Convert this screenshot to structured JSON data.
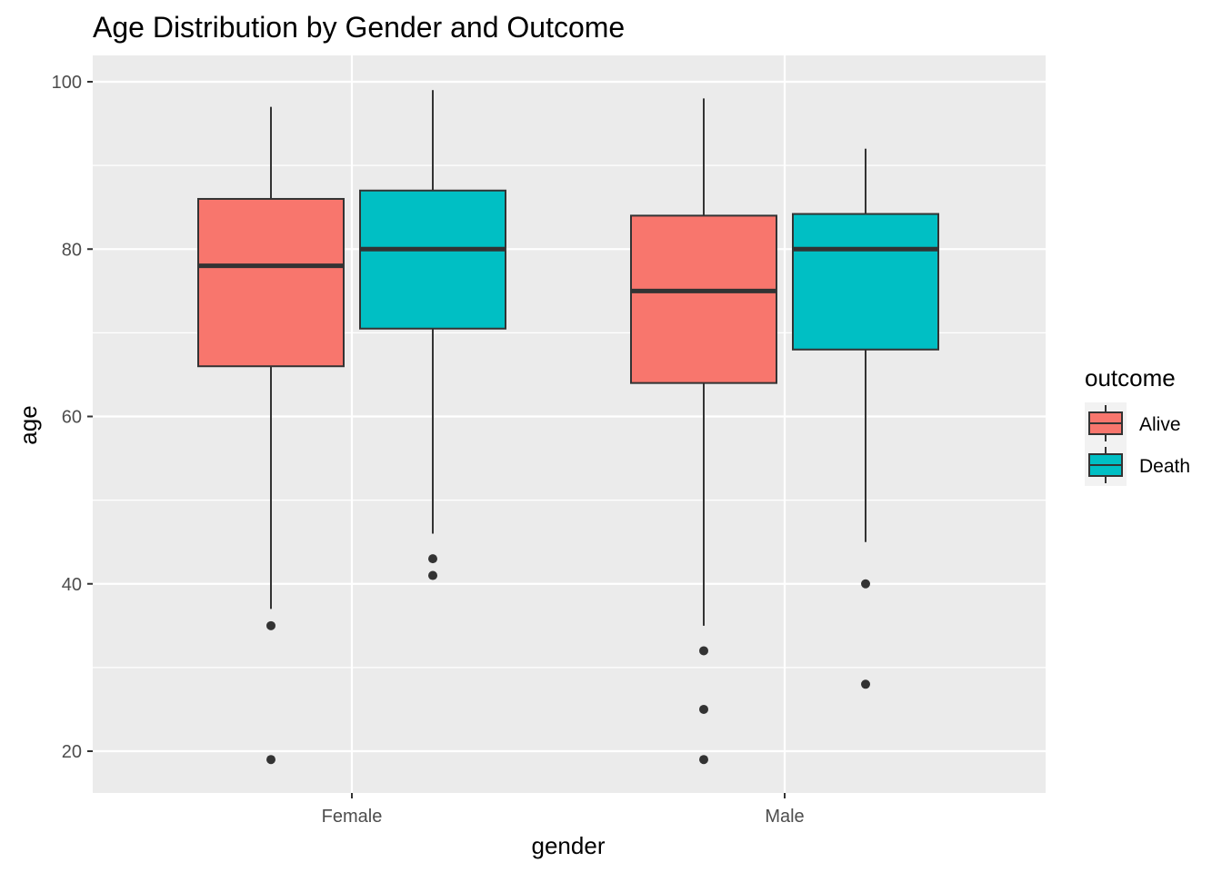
{
  "chart_data": {
    "type": "boxplot",
    "title": "Age Distribution by Gender and Outcome",
    "xlabel": "gender",
    "ylabel": "age",
    "categories": [
      "Female",
      "Male"
    ],
    "y_ticks": [
      "20",
      "40",
      "60",
      "80",
      "100"
    ],
    "y_tick_values": [
      20,
      40,
      60,
      80,
      100
    ],
    "ylim": [
      15,
      103
    ],
    "grid": true,
    "legend": {
      "title": "outcome",
      "position": "right",
      "entries": [
        {
          "label": "Alive",
          "color": "#F8766D"
        },
        {
          "label": "Death",
          "color": "#00BFC4"
        }
      ]
    },
    "series": [
      {
        "name": "Alive",
        "color": "#F8766D",
        "boxes": [
          {
            "category": "Female",
            "whisker_low": 37,
            "q1": 66,
            "median": 78,
            "q3": 86,
            "whisker_high": 97,
            "outliers": [
              35,
              19
            ]
          },
          {
            "category": "Male",
            "whisker_low": 35,
            "q1": 64,
            "median": 75,
            "q3": 84,
            "whisker_high": 98,
            "outliers": [
              32,
              25,
              19
            ]
          }
        ]
      },
      {
        "name": "Death",
        "color": "#00BFC4",
        "boxes": [
          {
            "category": "Female",
            "whisker_low": 46,
            "q1": 70.5,
            "median": 80,
            "q3": 87,
            "whisker_high": 99,
            "outliers": [
              43,
              41
            ]
          },
          {
            "category": "Male",
            "whisker_low": 45,
            "q1": 68,
            "median": 80,
            "q3": 84.2,
            "whisker_high": 92,
            "outliers": [
              40,
              28
            ]
          }
        ]
      }
    ],
    "colors": {
      "panel_background": "#EBEBEB",
      "grid_line": "#FFFFFF",
      "box_outline": "#333333",
      "outlier": "#333333"
    }
  }
}
